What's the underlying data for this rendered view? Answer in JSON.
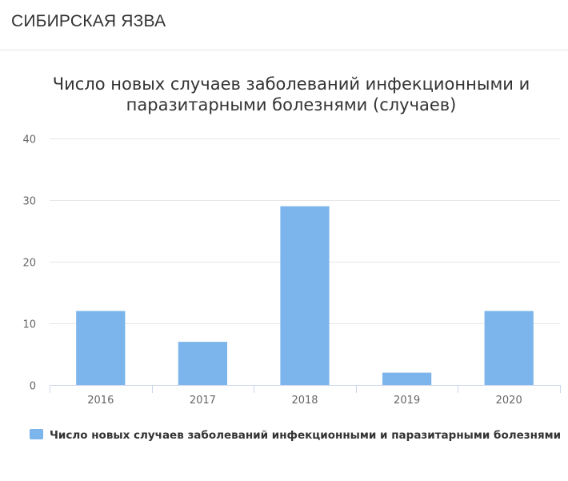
{
  "header": {
    "title": "СИБИРСКАЯ ЯЗВА"
  },
  "colors": {
    "bar": "#7cb5ec",
    "grid": "#e6e6e6",
    "axis": "#ccd6eb"
  },
  "chart_data": {
    "type": "bar",
    "title": "Число новых случаев заболеваний инфекционными и паразитарными болезнями (случаев)",
    "title_lines": [
      "Число новых случаев заболеваний инфекционными и",
      "паразитарными болезнями (случаев)"
    ],
    "categories": [
      "2016",
      "2017",
      "2018",
      "2019",
      "2020"
    ],
    "series": [
      {
        "name": "Число новых случаев заболеваний инфекционными и паразитарными болезнями",
        "values": [
          12,
          7,
          29,
          2,
          12
        ]
      }
    ],
    "ylim": [
      0,
      40
    ],
    "yticks": [
      0,
      10,
      20,
      30,
      40
    ],
    "grid": true,
    "legend_position": "bottom-left"
  }
}
